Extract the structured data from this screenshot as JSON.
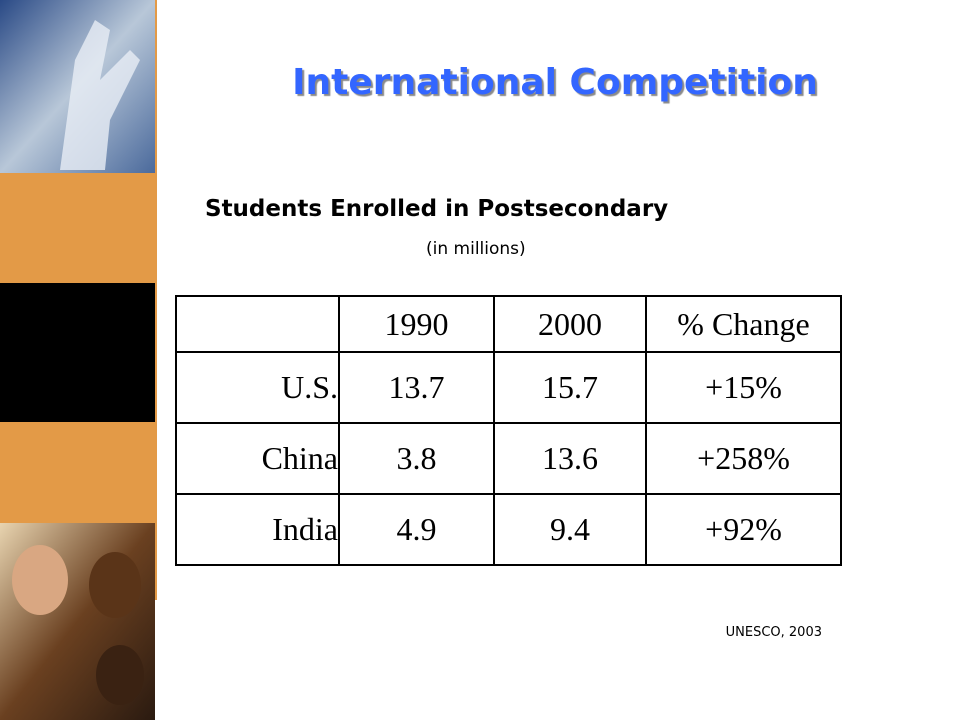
{
  "header": {
    "title": "International Competition",
    "subtitle": "Students Enrolled in Postsecondary",
    "unit_note": "(in millions)"
  },
  "table": {
    "columns": [
      "",
      "1990",
      "2000",
      "% Change"
    ],
    "rows": [
      [
        "U.S.",
        "13.7",
        "15.7",
        "+15%"
      ],
      [
        "China",
        "3.8",
        "13.6",
        "+258%"
      ],
      [
        "India",
        "4.9",
        "9.4",
        "+92%"
      ]
    ]
  },
  "source": "UNESCO, 2003"
}
